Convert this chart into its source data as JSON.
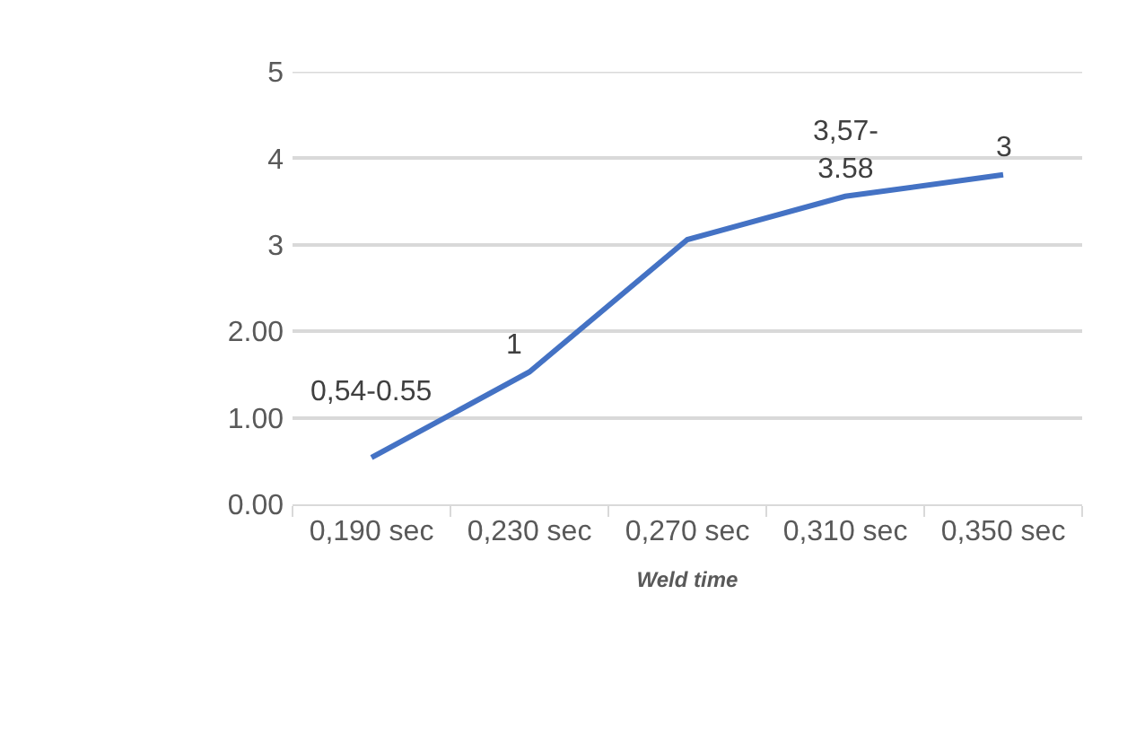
{
  "chart_data": {
    "type": "line",
    "xlabel": "Weld time",
    "categories": [
      "0,190 sec",
      "0,230 sec",
      "0,270 sec",
      "0,310 sec",
      "0,350 sec"
    ],
    "series": [
      {
        "color": "#4472c4",
        "values": [
          0.54,
          1.53,
          3.06,
          3.56,
          3.81
        ]
      }
    ],
    "annotations": [
      {
        "text": "0,54-0.55",
        "x": "0,190 sec",
        "y": 0.54
      },
      {
        "text": "1",
        "x": "0,230 sec",
        "y": 1.53
      },
      {
        "text": "3,57-3.58",
        "x": "0,310 sec",
        "y": 3.56
      },
      {
        "text": "3",
        "x": "0,350 sec",
        "y": 3.81
      }
    ],
    "ylim": [
      0,
      5
    ],
    "yticks": [
      {
        "value": 0,
        "label": "0.00"
      },
      {
        "value": 1,
        "label": "1.00"
      },
      {
        "value": 2,
        "label": "2.00"
      },
      3,
      4,
      5
    ],
    "grid": "y",
    "marker": "none",
    "line_style": "solid"
  }
}
